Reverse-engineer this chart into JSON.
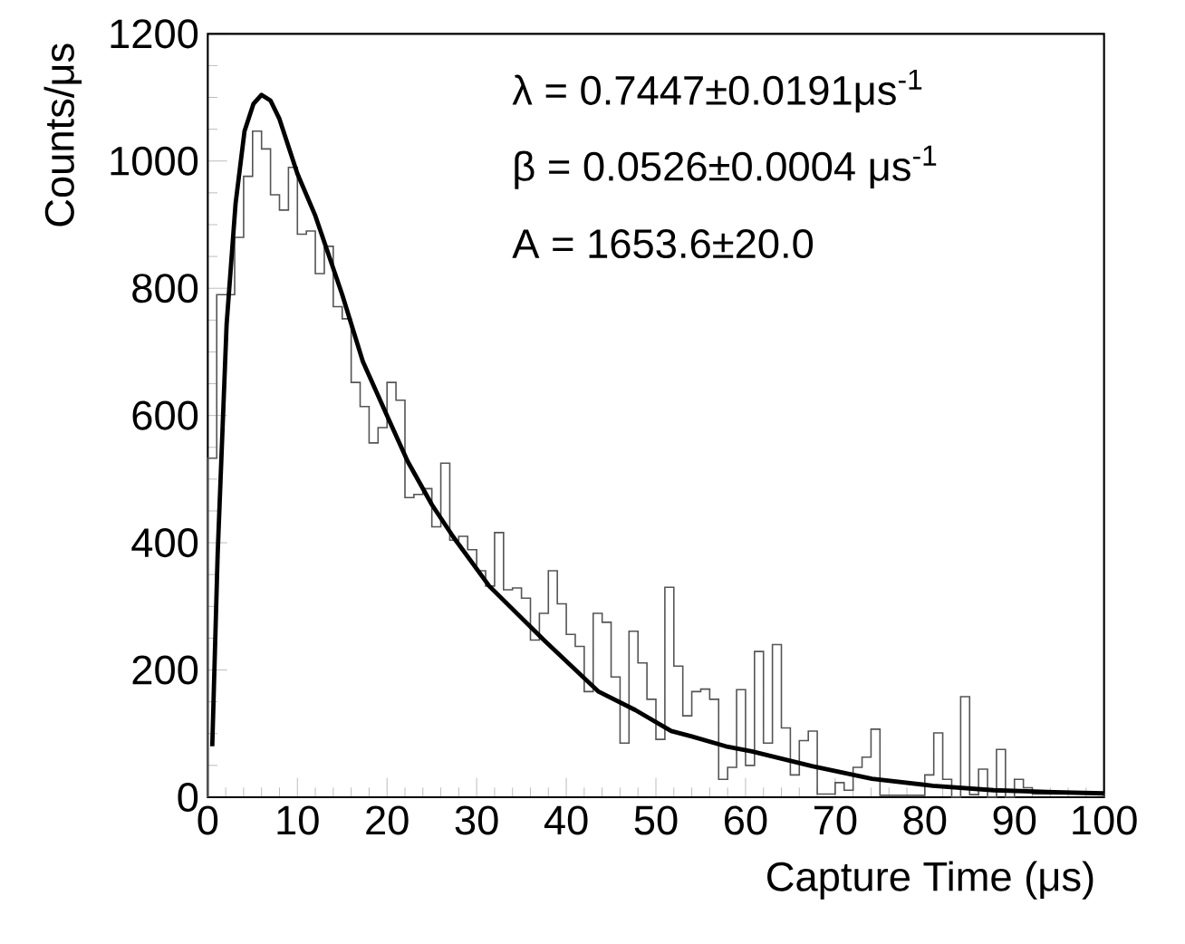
{
  "chart_data": {
    "type": "histogram",
    "xlabel": "Capture Time (μs)",
    "ylabel": "Counts/μs",
    "xlim": [
      0,
      100
    ],
    "ylim": [
      0,
      1200
    ],
    "xticks": [
      0,
      10,
      20,
      30,
      40,
      50,
      60,
      70,
      80,
      90,
      100
    ],
    "yticks": [
      0,
      200,
      400,
      600,
      800,
      1000,
      1200
    ],
    "grid": false,
    "marker": "none",
    "annotations": [
      "λ = 0.7447±0.0191μs$^{-1}$",
      "β = 0.0526±0.0004 μs$^{-1}$",
      "A = 1653.6±20.0"
    ],
    "series": [
      {
        "type": "histogram",
        "color": "#555555",
        "bins": [
          0,
          1,
          2,
          3,
          4,
          5,
          6,
          7,
          8,
          9,
          10,
          11,
          12,
          13,
          14,
          15,
          16,
          17,
          18,
          19,
          20,
          21,
          22,
          23,
          24,
          25,
          26,
          27,
          28,
          29,
          30,
          31,
          32,
          33,
          34,
          35,
          36,
          37,
          38,
          39,
          40,
          41,
          42,
          43,
          44,
          45,
          46,
          47,
          48,
          49,
          50,
          51,
          52,
          53,
          54,
          55,
          56,
          57,
          58,
          59,
          60,
          61,
          62,
          63,
          64,
          65,
          66,
          67,
          68,
          69,
          70,
          71,
          72,
          73,
          74,
          75,
          76,
          77,
          78,
          79,
          80,
          81,
          82,
          83,
          84,
          85,
          86,
          87,
          88,
          89,
          90,
          91,
          92,
          93,
          94,
          95,
          96,
          97,
          98,
          99,
          100
        ],
        "values": [
          533,
          790,
          790,
          880,
          976,
          1047,
          1019,
          947,
          923,
          990,
          885,
          890,
          823,
          866,
          771,
          752,
          652,
          614,
          557,
          581,
          652,
          624,
          471,
          476,
          485,
          425,
          525,
          404,
          410,
          389,
          356,
          332,
          416,
          326,
          329,
          313,
          247,
          289,
          356,
          304,
          256,
          237,
          166,
          289,
          275,
          189,
          85,
          261,
          211,
          154,
          91,
          330,
          206,
          128,
          166,
          170,
          154,
          28,
          47,
          169,
          50,
          229,
          85,
          240,
          109,
          35,
          89,
          104,
          5,
          5,
          23,
          11,
          47,
          63,
          107,
          3,
          3,
          3,
          3,
          3,
          35,
          101,
          28,
          0,
          158,
          4,
          44,
          0,
          75,
          0,
          28,
          15,
          5,
          5,
          5,
          5,
          5,
          5,
          5,
          5
        ]
      },
      {
        "type": "line",
        "color": "#000000",
        "line_style": "solid",
        "x": [
          0.5,
          1.1,
          2.1,
          3.1,
          4.1,
          5.1,
          6,
          7,
          8,
          10,
          12,
          15,
          17.3,
          20,
          22.3,
          25,
          27.4,
          31.4,
          37.5,
          43.6,
          47.7,
          51.7,
          53.9,
          57.8,
          60.7,
          67.4,
          74.1,
          80.9,
          87.7,
          94.4,
          100
        ],
        "values": [
          80,
          381,
          743,
          933,
          1047,
          1090,
          1104,
          1095,
          1066,
          980,
          914,
          790,
          685,
          600,
          528,
          460,
          409,
          332,
          247,
          166,
          137,
          104,
          96,
          80,
          72,
          49,
          29,
          18,
          11,
          8,
          6
        ]
      }
    ]
  }
}
